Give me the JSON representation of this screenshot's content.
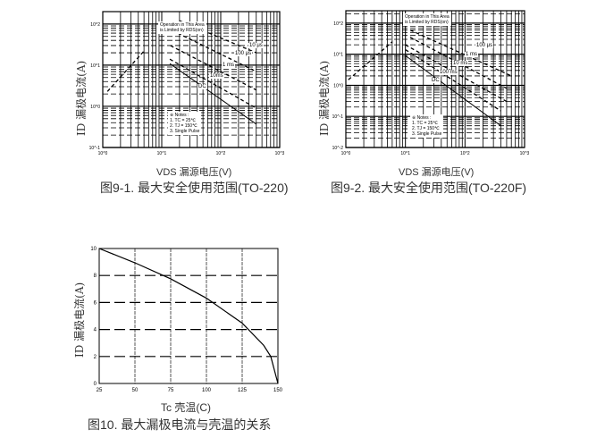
{
  "chart_data": [
    {
      "type": "line",
      "title": "图9-1. 最大安全使用范围(TO-220)",
      "xlabel": "VDS 漏源电压(V)",
      "ylabel": "ID 漏极电流(A)",
      "xscale": "log",
      "yscale": "log",
      "xlim": [
        1,
        1000
      ],
      "ylim": [
        0.1,
        200
      ],
      "xticks": [
        "10^0",
        "10^1",
        "10^2",
        "10^3"
      ],
      "yticks": [
        "10^-1",
        "10^0",
        "10^1",
        "10^2"
      ],
      "grid": true,
      "annotation": [
        "Operation in This Area",
        "is Limited by RDS(on)"
      ],
      "notes": [
        "※ Notes :",
        "1. TC = 25℃",
        "2. TJ = 150℃",
        "3. Single Pulse"
      ],
      "series": [
        {
          "name": "RDS(on) limit",
          "x": [
            1.2,
            5
          ],
          "y": [
            2.3,
            22
          ]
        },
        {
          "name": "10 μs",
          "x": [
            20,
            400
          ],
          "y": [
            120,
            20
          ]
        },
        {
          "name": "100 μs",
          "x": [
            15,
            400
          ],
          "y": [
            70,
            7
          ]
        },
        {
          "name": "1 ms",
          "x": [
            14,
            400
          ],
          "y": [
            30,
            2.5
          ]
        },
        {
          "name": "10ms",
          "x": [
            13.7,
            400
          ],
          "y": [
            14,
            0.9
          ]
        },
        {
          "name": "DC",
          "x": [
            13.7,
            400
          ],
          "y": [
            10.9,
            0.37
          ]
        }
      ]
    },
    {
      "type": "line",
      "title": "图9-2. 最大安全使用范围(TO-220F)",
      "xlabel": "VDS 漏源电压(V)",
      "ylabel": "ID 漏极电流(A)",
      "xscale": "log",
      "yscale": "log",
      "xlim": [
        1,
        1000
      ],
      "ylim": [
        0.01,
        250
      ],
      "xticks": [
        "10^0",
        "10^1",
        "10^2",
        "10^3"
      ],
      "yticks": [
        "10^-2",
        "10^-1",
        "10^0",
        "10^1",
        "10^2"
      ],
      "grid": true,
      "annotation": [
        "Operation in This Area",
        "is Limited by RDS(on)"
      ],
      "notes": [
        "※ Notes :",
        "1. TC = 25℃",
        "2. TJ = 150℃",
        "3. Single Pulse"
      ],
      "series": [
        {
          "name": "RDS(on) limit",
          "x": [
            1.1,
            6
          ],
          "y": [
            1.5,
            25
          ]
        },
        {
          "name": "100 μs",
          "x": [
            12,
            600
          ],
          "y": [
            60,
            2
          ]
        },
        {
          "name": "1 ms",
          "x": [
            12,
            500
          ],
          "y": [
            35,
            0.8
          ]
        },
        {
          "name": "10 ms",
          "x": [
            10,
            500
          ],
          "y": [
            20,
            0.3
          ]
        },
        {
          "name": "100 ms",
          "x": [
            10,
            400
          ],
          "y": [
            14,
            0.15
          ]
        },
        {
          "name": "DC",
          "x": [
            10,
            400
          ],
          "y": [
            9,
            0.05
          ]
        }
      ]
    },
    {
      "type": "line",
      "title": "图10. 最大漏极电流与壳温的关系",
      "xlabel": "Tc 壳温(C)",
      "ylabel": "ID 漏极电流(A)",
      "xlim": [
        25,
        150
      ],
      "ylim": [
        0,
        10
      ],
      "xticks": [
        25,
        50,
        75,
        100,
        125,
        150
      ],
      "yticks": [
        0,
        2,
        4,
        6,
        8,
        10
      ],
      "grid": true,
      "series": [
        {
          "x": [
            25,
            50,
            75,
            100,
            125,
            140,
            145,
            150
          ],
          "y": [
            10,
            8.94,
            7.75,
            6.32,
            4.47,
            2.83,
            2.0,
            0
          ]
        }
      ]
    }
  ]
}
